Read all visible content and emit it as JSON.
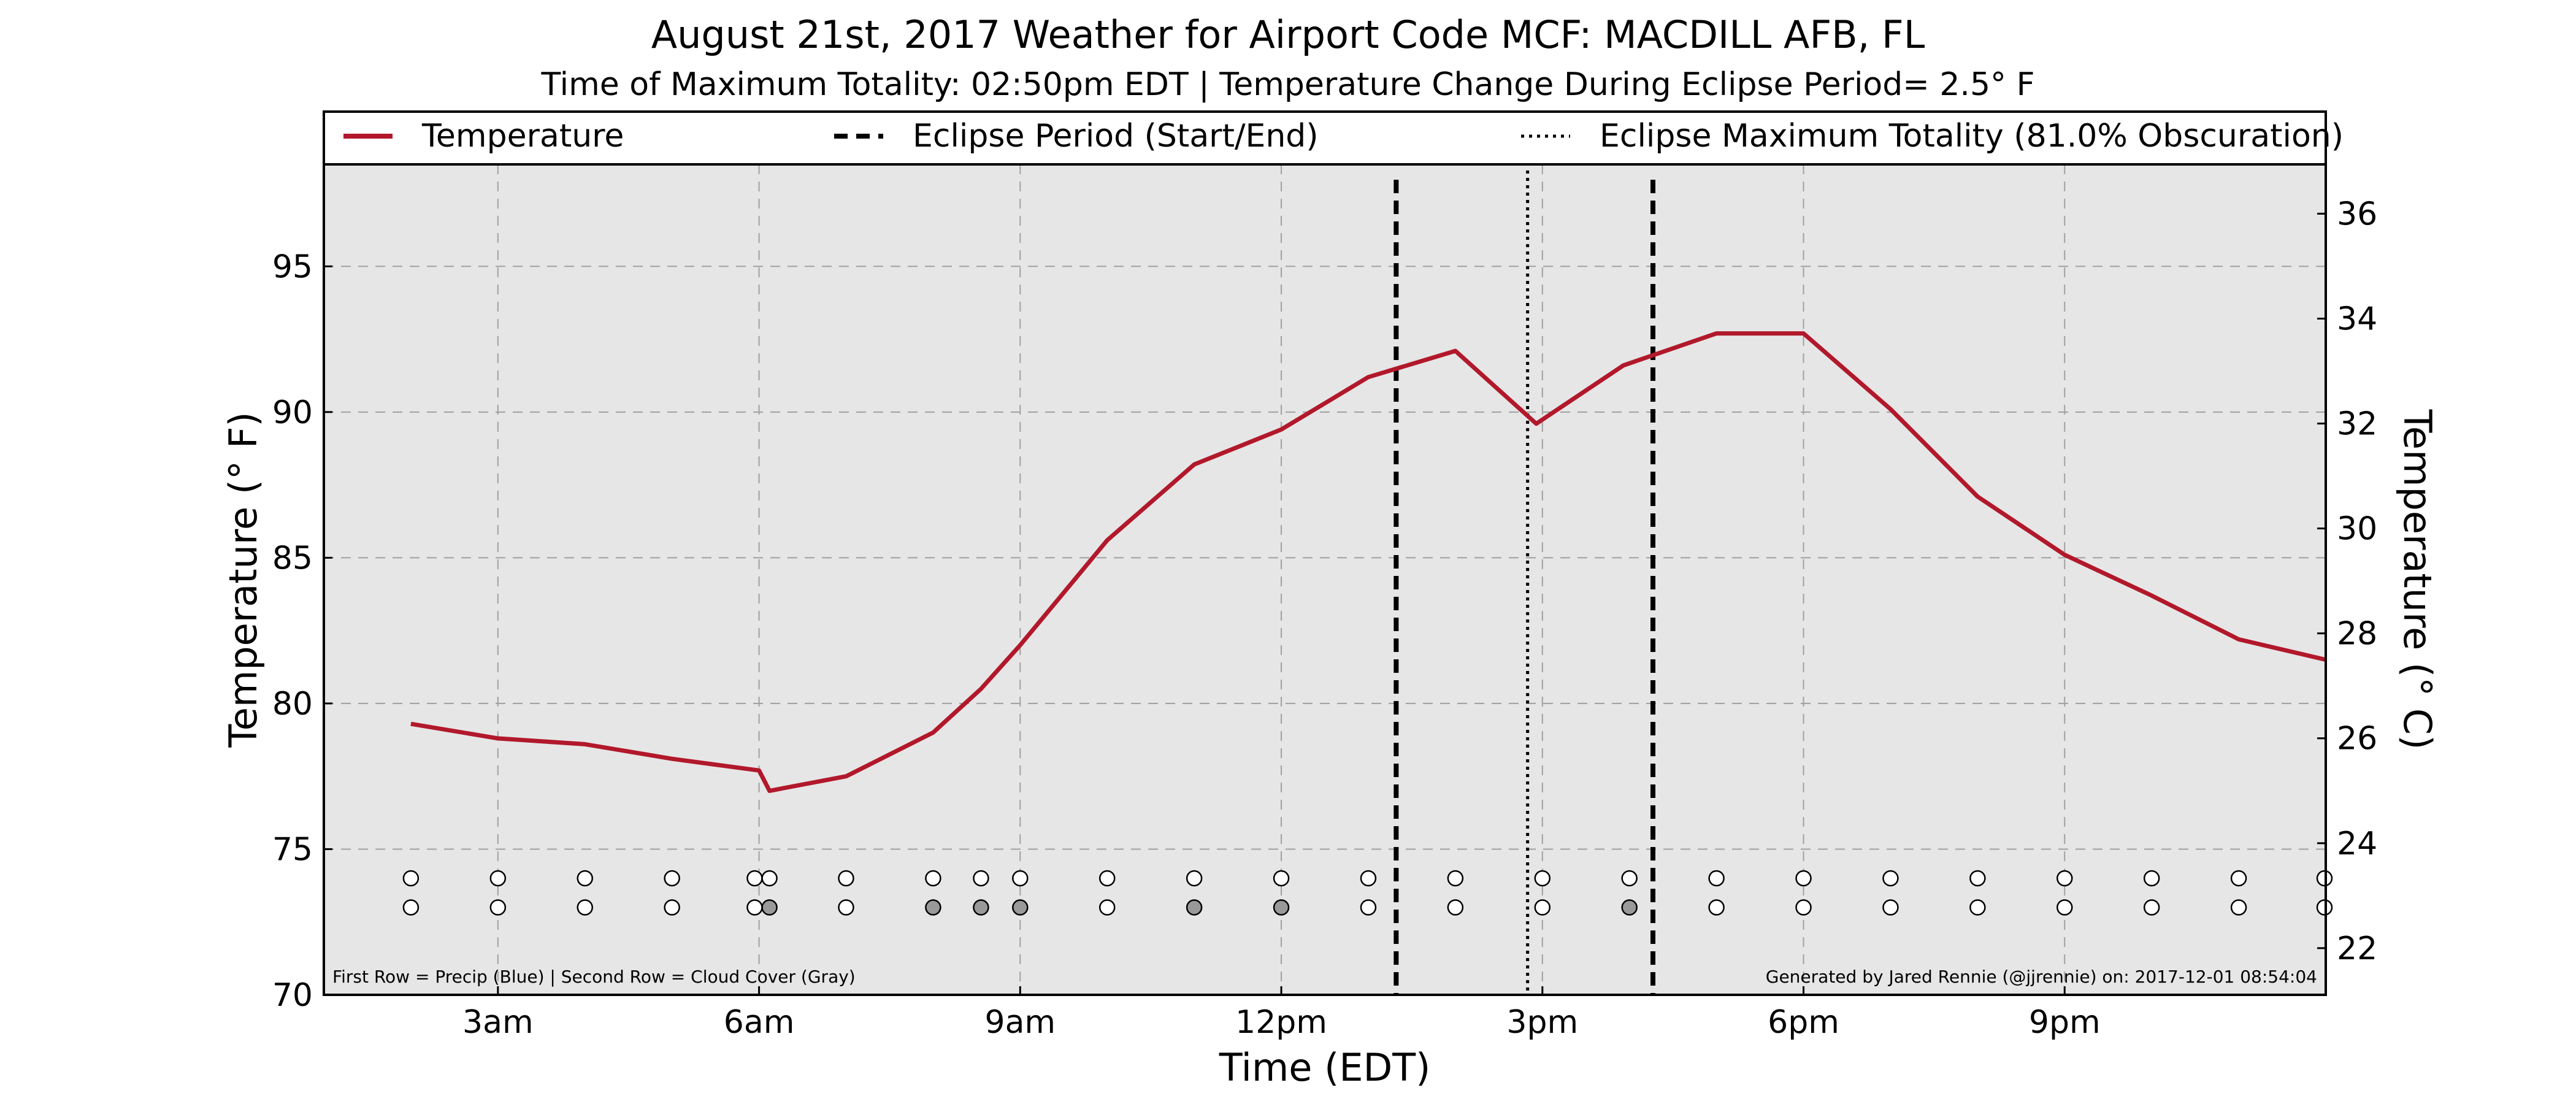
{
  "chart_data": {
    "type": "line",
    "title": "August 21st, 2017 Weather for Airport Code MCF: MACDILL AFB, FL",
    "subtitle": "Time of Maximum Totality: 02:50pm EDT | Temperature Change During Eclipse Period= 2.5° F",
    "xlabel": "Time (EDT)",
    "ylabel": "Temperature (° F)",
    "ylabel_right": "Temperature (° C)",
    "xlim": [
      1.0,
      24.0
    ],
    "ylim": [
      70,
      98.5
    ],
    "ylim_right_c": [
      21.11,
      36.94
    ],
    "x_ticks": [
      {
        "value": 3,
        "label": "3am"
      },
      {
        "value": 6,
        "label": "6am"
      },
      {
        "value": 9,
        "label": "9am"
      },
      {
        "value": 12,
        "label": "12pm"
      },
      {
        "value": 15,
        "label": "3pm"
      },
      {
        "value": 18,
        "label": "6pm"
      },
      {
        "value": 21,
        "label": "9pm"
      }
    ],
    "y_ticks": [
      {
        "value": 70,
        "label": "70"
      },
      {
        "value": 75,
        "label": "75"
      },
      {
        "value": 80,
        "label": "80"
      },
      {
        "value": 85,
        "label": "85"
      },
      {
        "value": 90,
        "label": "90"
      },
      {
        "value": 95,
        "label": "95"
      }
    ],
    "y_ticks_right": [
      {
        "value": 22,
        "label": "22"
      },
      {
        "value": 24,
        "label": "24"
      },
      {
        "value": 26,
        "label": "26"
      },
      {
        "value": 28,
        "label": "28"
      },
      {
        "value": 30,
        "label": "30"
      },
      {
        "value": 32,
        "label": "32"
      },
      {
        "value": 34,
        "label": "34"
      },
      {
        "value": 36,
        "label": "36"
      }
    ],
    "grid": true,
    "legend_placement": "top",
    "legend": [
      {
        "label": "Temperature",
        "style": "solid",
        "color": "#b2182b"
      },
      {
        "label": "Eclipse Period (Start/End)",
        "style": "dashed",
        "color": "#000000"
      },
      {
        "label": "Eclipse Maximum Totality (81.0% Obscuration)",
        "style": "dotted",
        "color": "#000000"
      }
    ],
    "series": [
      {
        "name": "Temperature",
        "color": "#b2182b",
        "x": [
          2.0,
          3.0,
          4.0,
          5.0,
          6.0,
          6.12,
          7.0,
          8.0,
          8.55,
          9.0,
          10.0,
          11.0,
          12.0,
          13.0,
          14.0,
          14.93,
          15.93,
          17.0,
          18.0,
          19.0,
          20.0,
          21.0,
          22.0,
          23.0,
          24.0
        ],
        "y": [
          79.3,
          78.8,
          78.6,
          78.1,
          77.7,
          77.0,
          77.5,
          79.0,
          80.5,
          82.0,
          85.6,
          88.2,
          89.4,
          91.2,
          92.1,
          89.6,
          91.6,
          92.7,
          92.7,
          90.1,
          87.1,
          85.1,
          83.7,
          82.2,
          81.5
        ]
      }
    ],
    "eclipse_start": 13.32,
    "eclipse_end": 16.27,
    "eclipse_max": 14.83,
    "precip_row": {
      "y": 74.0,
      "x": [
        2.0,
        3.0,
        4.0,
        5.0,
        5.95,
        6.12,
        7.0,
        8.0,
        8.55,
        9.0,
        10.0,
        11.0,
        12.0,
        13.0,
        14.0,
        15.0,
        16.0,
        17.0,
        18.0,
        19.0,
        20.0,
        21.0,
        22.0,
        23.0,
        24.0
      ],
      "fill": [
        "#ffffff",
        "#ffffff",
        "#ffffff",
        "#ffffff",
        "#ffffff",
        "#ffffff",
        "#ffffff",
        "#ffffff",
        "#ffffff",
        "#ffffff",
        "#ffffff",
        "#ffffff",
        "#ffffff",
        "#ffffff",
        "#ffffff",
        "#ffffff",
        "#ffffff",
        "#ffffff",
        "#ffffff",
        "#ffffff",
        "#ffffff",
        "#ffffff",
        "#ffffff",
        "#ffffff",
        "#ffffff"
      ]
    },
    "cloud_row": {
      "y": 73.0,
      "x": [
        2.0,
        3.0,
        4.0,
        5.0,
        5.95,
        6.12,
        7.0,
        8.0,
        8.55,
        9.0,
        10.0,
        11.0,
        12.0,
        13.0,
        14.0,
        15.0,
        16.0,
        17.0,
        18.0,
        19.0,
        20.0,
        21.0,
        22.0,
        23.0,
        24.0
      ],
      "fill": [
        "#ffffff",
        "#ffffff",
        "#ffffff",
        "#ffffff",
        "#ffffff",
        "#999999",
        "#ffffff",
        "#999999",
        "#999999",
        "#999999",
        "#ffffff",
        "#999999",
        "#999999",
        "#ffffff",
        "#ffffff",
        "#ffffff",
        "#999999",
        "#ffffff",
        "#ffffff",
        "#ffffff",
        "#ffffff",
        "#ffffff",
        "#ffffff",
        "#ffffff",
        "#ffffff"
      ]
    },
    "footnote_left": "First Row = Precip (Blue) | Second Row = Cloud Cover (Gray)",
    "footnote_right": "Generated by Jared Rennie (@jjrennie) on: 2017-12-01 08:54:04"
  },
  "colors": {
    "plot_background": "#e6e6e6",
    "temperature_line": "#b2182b",
    "grid": "#a0a0a0"
  }
}
